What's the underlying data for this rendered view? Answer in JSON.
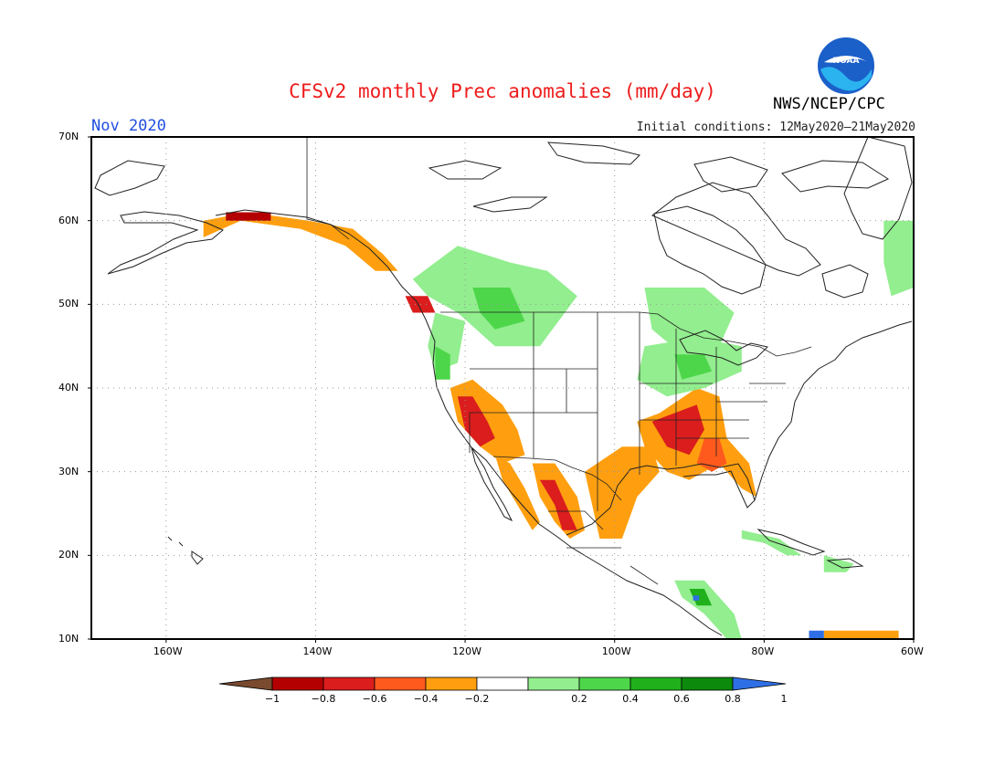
{
  "title": "CFSv2 monthly Prec anomalies (mm/day)",
  "month": "Nov 2020",
  "initial_conditions": "Initial conditions: 12May2020—21May2020",
  "agency": "NWS/NCEP/CPC",
  "logo_text": "NOAA",
  "map": {
    "lat_labels": [
      "70N",
      "60N",
      "50N",
      "40N",
      "30N",
      "20N",
      "10N"
    ],
    "lon_labels": [
      "160W",
      "140W",
      "120W",
      "100W",
      "80W",
      "60W"
    ],
    "lat_range": [
      10,
      70
    ],
    "lon_range": [
      -170,
      -60
    ],
    "grid": "dotted"
  },
  "colorbar": {
    "labels": [
      "-1",
      "-0.8",
      "-0.6",
      "-0.4",
      "-0.2",
      "0.2",
      "0.4",
      "0.6",
      "0.8",
      "1"
    ],
    "colors": [
      "#7a4a2f",
      "#b40000",
      "#db1d1d",
      "#ff5a1e",
      "#ff9f0f",
      "#ffffff",
      "#92ee8e",
      "#4ed64b",
      "#1fb01b",
      "#0c8a0c",
      "#2f6fe6"
    ]
  },
  "anomaly_regions": [
    {
      "name": "california-dry",
      "color": "#ff9f0f",
      "points": [
        [
          -122,
          40
        ],
        [
          -119,
          41
        ],
        [
          -115,
          38
        ],
        [
          -113,
          35
        ],
        [
          -112,
          32
        ],
        [
          -115,
          31
        ],
        [
          -118,
          33
        ],
        [
          -121,
          36
        ]
      ]
    },
    {
      "name": "california-core",
      "color": "#db1d1d",
      "points": [
        [
          -121,
          39
        ],
        [
          -119,
          39
        ],
        [
          -117,
          36
        ],
        [
          -116,
          34
        ],
        [
          -118,
          33
        ],
        [
          -120,
          35
        ]
      ]
    },
    {
      "name": "baja-dry",
      "color": "#ff9f0f",
      "points": [
        [
          -116,
          32
        ],
        [
          -114,
          31
        ],
        [
          -112,
          28
        ],
        [
          -110,
          24
        ],
        [
          -111,
          23
        ],
        [
          -113,
          26
        ],
        [
          -115,
          29
        ]
      ]
    },
    {
      "name": "mexico-west-dry",
      "color": "#ff9f0f",
      "points": [
        [
          -111,
          31
        ],
        [
          -108,
          31
        ],
        [
          -105,
          27
        ],
        [
          -104,
          23
        ],
        [
          -106,
          22
        ],
        [
          -108,
          24
        ],
        [
          -110,
          27
        ]
      ]
    },
    {
      "name": "mexico-west-core",
      "color": "#db1d1d",
      "points": [
        [
          -110,
          29
        ],
        [
          -108,
          29
        ],
        [
          -106,
          25
        ],
        [
          -105,
          23
        ],
        [
          -107,
          23
        ],
        [
          -108,
          26
        ]
      ]
    },
    {
      "name": "texas-dry",
      "color": "#ff9f0f",
      "points": [
        [
          -104,
          30
        ],
        [
          -99,
          33
        ],
        [
          -95,
          33
        ],
        [
          -94,
          30
        ],
        [
          -97,
          27
        ],
        [
          -99,
          22
        ],
        [
          -102,
          22
        ],
        [
          -103,
          26
        ]
      ]
    },
    {
      "name": "midsouth-dry",
      "color": "#ff9f0f",
      "points": [
        [
          -97,
          36
        ],
        [
          -94,
          37
        ],
        [
          -89,
          40
        ],
        [
          -86,
          39
        ],
        [
          -85,
          34
        ],
        [
          -82,
          31
        ],
        [
          -81,
          27
        ],
        [
          -83,
          28
        ],
        [
          -86,
          31
        ],
        [
          -90,
          29
        ],
        [
          -93,
          30
        ],
        [
          -96,
          33
        ]
      ]
    },
    {
      "name": "midsouth-core",
      "color": "#db1d1d",
      "points": [
        [
          -95,
          36
        ],
        [
          -92,
          37
        ],
        [
          -89,
          38
        ],
        [
          -88,
          35
        ],
        [
          -90,
          32
        ],
        [
          -93,
          33
        ]
      ]
    },
    {
      "name": "southeast-core",
      "color": "#ff5a1e",
      "points": [
        [
          -88,
          34
        ],
        [
          -86,
          34
        ],
        [
          -85,
          31
        ],
        [
          -87,
          30
        ],
        [
          -89,
          31
        ]
      ]
    },
    {
      "name": "alaska-south-dry",
      "color": "#ff9f0f",
      "points": [
        [
          -155,
          60
        ],
        [
          -149,
          61
        ],
        [
          -141,
          60
        ],
        [
          -135,
          59
        ],
        [
          -131,
          56
        ],
        [
          -129,
          54
        ],
        [
          -132,
          54
        ],
        [
          -136,
          57
        ],
        [
          -142,
          59
        ],
        [
          -150,
          60
        ],
        [
          -155,
          58
        ]
      ]
    },
    {
      "name": "alaska-south-core",
      "color": "#b40000",
      "points": [
        [
          -152,
          61
        ],
        [
          -146,
          61
        ],
        [
          -146,
          60
        ],
        [
          -152,
          60
        ]
      ]
    },
    {
      "name": "bc-coast-core",
      "color": "#db1d1d",
      "points": [
        [
          -128,
          51
        ],
        [
          -125,
          51
        ],
        [
          -124,
          49
        ],
        [
          -127,
          49
        ]
      ]
    },
    {
      "name": "pacific-nw-wet",
      "color": "#92ee8e",
      "points": [
        [
          -124,
          49
        ],
        [
          -120,
          48
        ],
        [
          -121,
          43
        ],
        [
          -124,
          42
        ],
        [
          -125,
          45
        ]
      ]
    },
    {
      "name": "pacific-nw-core",
      "color": "#4ed64b",
      "points": [
        [
          -124,
          45
        ],
        [
          -122,
          44
        ],
        [
          -122,
          41
        ],
        [
          -124,
          41
        ]
      ]
    },
    {
      "name": "canada-wet",
      "color": "#92ee8e",
      "points": [
        [
          -127,
          53
        ],
        [
          -121,
          57
        ],
        [
          -114,
          55
        ],
        [
          -109,
          54
        ],
        [
          -105,
          51
        ],
        [
          -110,
          45
        ],
        [
          -116,
          45
        ],
        [
          -121,
          49
        ],
        [
          -125,
          51
        ]
      ]
    },
    {
      "name": "canada-wet-core",
      "color": "#4ed64b",
      "points": [
        [
          -119,
          52
        ],
        [
          -114,
          52
        ],
        [
          -112,
          48
        ],
        [
          -116,
          47
        ],
        [
          -118,
          49
        ]
      ]
    },
    {
      "name": "hudson-wet",
      "color": "#92ee8e",
      "points": [
        [
          -96,
          52
        ],
        [
          -88,
          52
        ],
        [
          -84,
          49
        ],
        [
          -86,
          45
        ],
        [
          -91,
          44
        ],
        [
          -95,
          47
        ]
      ]
    },
    {
      "name": "great-lakes-wet",
      "color": "#92ee8e",
      "points": [
        [
          -96,
          45
        ],
        [
          -89,
          46
        ],
        [
          -83,
          45
        ],
        [
          -83,
          42
        ],
        [
          -88,
          40
        ],
        [
          -93,
          39
        ],
        [
          -97,
          41
        ]
      ]
    },
    {
      "name": "great-lakes-core",
      "color": "#4ed64b",
      "points": [
        [
          -92,
          44
        ],
        [
          -88,
          44
        ],
        [
          -87,
          42
        ],
        [
          -91,
          41
        ]
      ]
    },
    {
      "name": "canada-east-wet",
      "color": "#92ee8e",
      "points": [
        [
          -64,
          60
        ],
        [
          -60,
          60
        ],
        [
          -60,
          52
        ],
        [
          -63,
          51
        ],
        [
          -64,
          55
        ]
      ]
    },
    {
      "name": "central-america-wet",
      "color": "#92ee8e",
      "points": [
        [
          -92,
          17
        ],
        [
          -88,
          17
        ],
        [
          -84,
          13
        ],
        [
          -83,
          10
        ],
        [
          -85,
          10
        ],
        [
          -88,
          13
        ],
        [
          -91,
          15
        ]
      ]
    },
    {
      "name": "central-america-core",
      "color": "#1fb01b",
      "points": [
        [
          -90,
          16
        ],
        [
          -88,
          16
        ],
        [
          -87,
          14
        ],
        [
          -89,
          14
        ]
      ]
    },
    {
      "name": "central-america-blue",
      "color": "#2f6fe6",
      "points": [
        [
          -89.5,
          15.2
        ],
        [
          -88.7,
          15.2
        ],
        [
          -88.7,
          14.6
        ],
        [
          -89.5,
          14.6
        ]
      ]
    },
    {
      "name": "cuba-wet",
      "color": "#92ee8e",
      "points": [
        [
          -83,
          23
        ],
        [
          -78,
          22
        ],
        [
          -75,
          20
        ],
        [
          -77,
          20
        ],
        [
          -80,
          21.5
        ],
        [
          -83,
          22
        ]
      ]
    },
    {
      "name": "hispaniola-wet",
      "color": "#92ee8e",
      "points": [
        [
          -72,
          20
        ],
        [
          -68,
          19
        ],
        [
          -69,
          18
        ],
        [
          -72,
          18
        ]
      ]
    },
    {
      "name": "venezuela-dry",
      "color": "#ff9f0f",
      "points": [
        [
          -72,
          11
        ],
        [
          -62,
          11
        ],
        [
          -62,
          10
        ],
        [
          -72,
          10
        ]
      ]
    },
    {
      "name": "venezuela-blue",
      "color": "#2f6fe6",
      "points": [
        [
          -74,
          11
        ],
        [
          -72,
          11
        ],
        [
          -72,
          10
        ],
        [
          -74,
          10
        ]
      ]
    }
  ]
}
